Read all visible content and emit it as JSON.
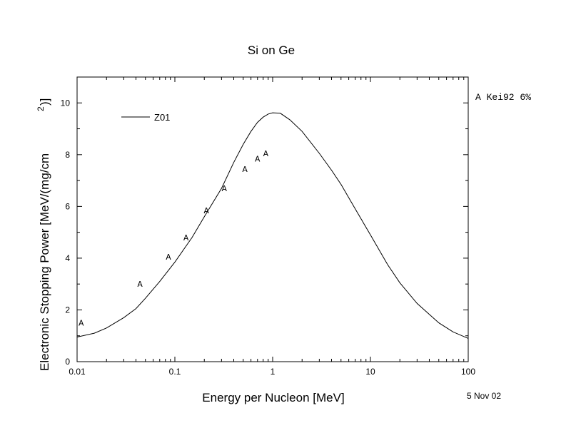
{
  "chart_data": {
    "type": "line",
    "title": "Si on Ge",
    "xlabel": "Energy per Nucleon [MeV]",
    "ylabel": "Electronic Stopping Power [MeV/(mg/cm",
    "ylabel_sup": "2",
    "ylabel_end": ")]",
    "x_scale": "log",
    "xlim": [
      0.01,
      100
    ],
    "ylim": [
      0,
      11
    ],
    "x_ticks": [
      0.01,
      0.1,
      1,
      10,
      100
    ],
    "x_tick_labels": [
      "0.01",
      "0.1",
      "1",
      "10",
      "100"
    ],
    "y_ticks": [
      0,
      2,
      4,
      6,
      8,
      10
    ],
    "y_tick_labels": [
      "0",
      "2",
      "4",
      "6",
      "8",
      "10"
    ],
    "grid": false,
    "legend": {
      "placement": "top-left",
      "label": "Z01"
    },
    "side_note": "A Kei92 6%",
    "date": "5 Nov 02",
    "series": [
      {
        "name": "Z01",
        "x": [
          0.01,
          0.015,
          0.02,
          0.03,
          0.04,
          0.05,
          0.07,
          0.1,
          0.15,
          0.2,
          0.3,
          0.4,
          0.5,
          0.6,
          0.7,
          0.8,
          0.9,
          1.0,
          1.2,
          1.5,
          2,
          3,
          4,
          5,
          7,
          10,
          15,
          20,
          30,
          50,
          70,
          100
        ],
        "y": [
          0.95,
          1.1,
          1.3,
          1.7,
          2.05,
          2.45,
          3.1,
          3.85,
          4.8,
          5.6,
          6.7,
          7.7,
          8.4,
          8.9,
          9.25,
          9.45,
          9.57,
          9.62,
          9.6,
          9.35,
          8.9,
          8.05,
          7.4,
          6.85,
          5.9,
          4.9,
          3.75,
          3.05,
          2.25,
          1.5,
          1.15,
          0.9
        ]
      },
      {
        "name": "A",
        "marker": "A",
        "x": [
          0.011,
          0.044,
          0.086,
          0.13,
          0.21,
          0.32,
          0.52,
          0.7,
          0.85
        ],
        "y": [
          1.5,
          3.0,
          4.05,
          4.8,
          5.85,
          6.7,
          7.45,
          7.85,
          8.05
        ]
      }
    ]
  }
}
